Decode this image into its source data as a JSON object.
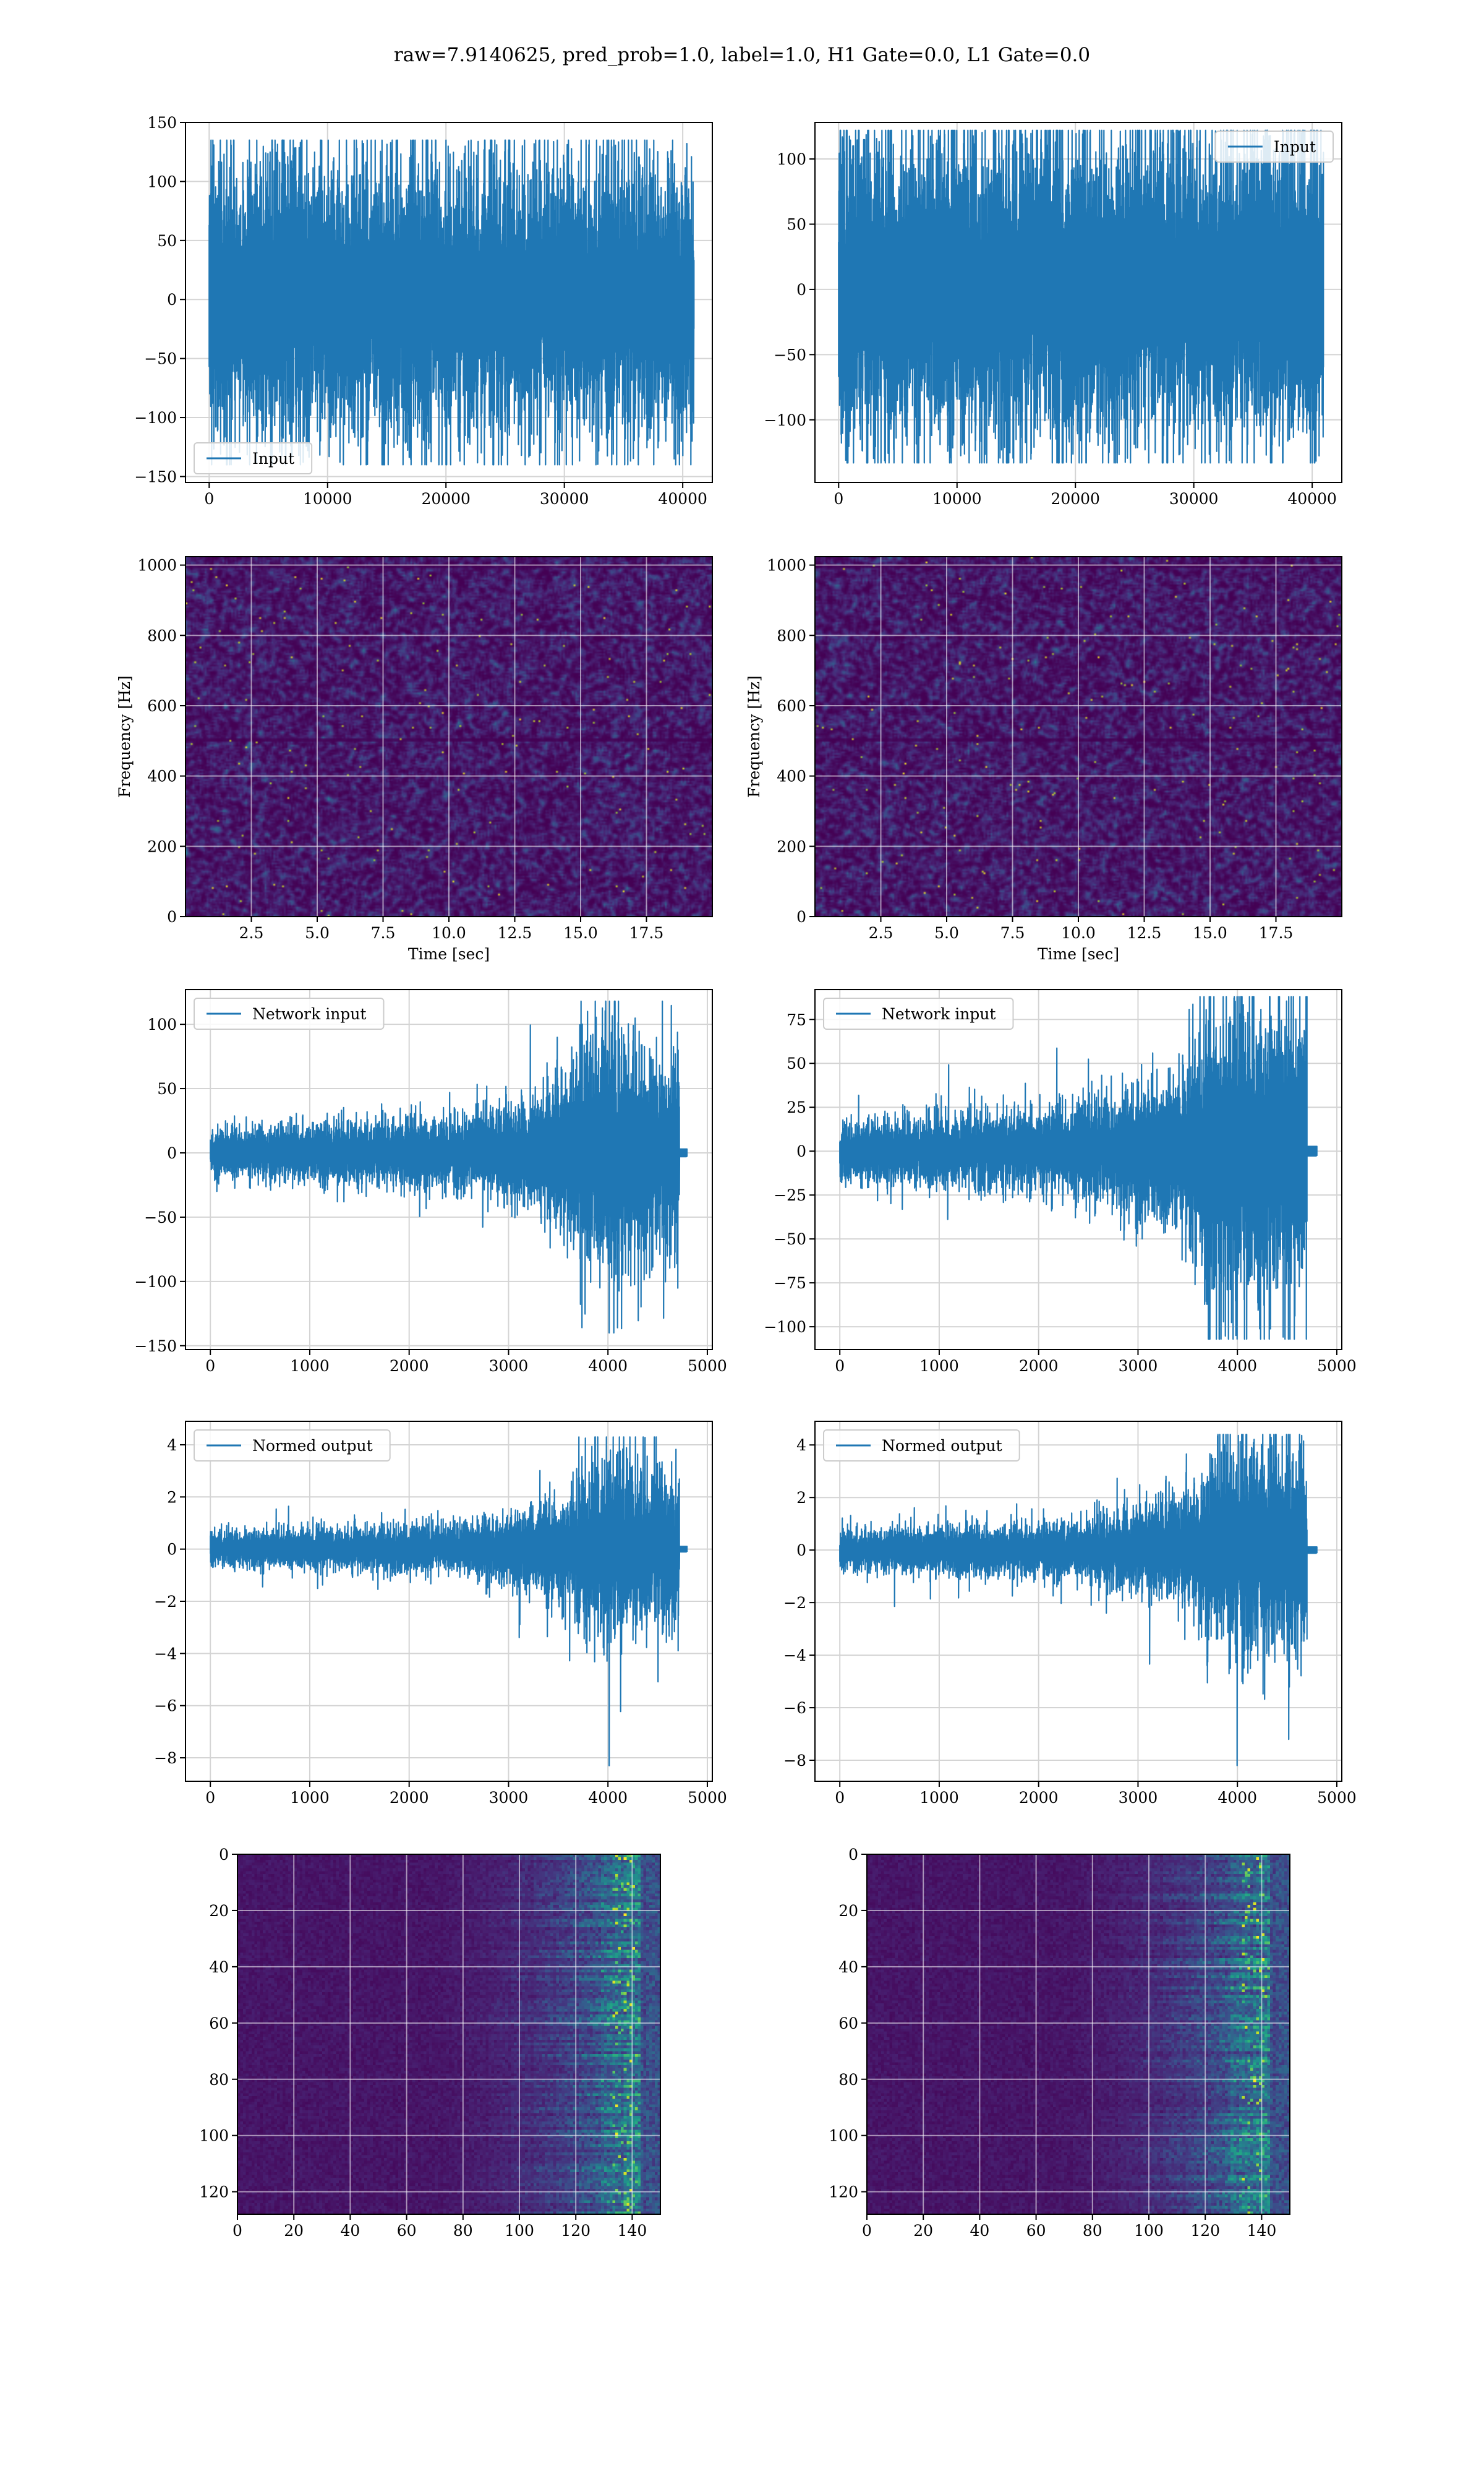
{
  "figure": {
    "suptitle": "raw=7.9140625, pred_prob=1.0, label=1.0, H1 Gate=0.0, L1 Gate=0.0"
  },
  "colors": {
    "line": "#1f77b4",
    "grid": "#d4d4d4",
    "viridis_low": "#440154",
    "viridis_mid": "#21918c",
    "viridis_high": "#fde725"
  },
  "chart_data": [
    {
      "id": "h1-input",
      "type": "line",
      "title": "",
      "xlabel": "",
      "ylabel": "",
      "xlim": [
        -2000,
        42500
      ],
      "ylim": [
        -155,
        150
      ],
      "xticks": [
        0,
        10000,
        20000,
        30000,
        40000
      ],
      "yticks": [
        -150,
        -100,
        -50,
        0,
        50,
        100,
        150
      ],
      "legend": {
        "entries": [
          "Input"
        ],
        "placement": "lower-left"
      },
      "grid": true,
      "series": [
        {
          "name": "Input",
          "x_range": [
            0,
            40959
          ],
          "noise": {
            "core": 62,
            "peak_max": 135,
            "peak_min": -140,
            "envelope": [
              [
                0,
                1
              ],
              [
                40959,
                1
              ]
            ]
          }
        }
      ]
    },
    {
      "id": "l1-input",
      "type": "line",
      "title": "",
      "xlabel": "",
      "ylabel": "",
      "xlim": [
        -2000,
        42500
      ],
      "ylim": [
        -148,
        128
      ],
      "xticks": [
        0,
        10000,
        20000,
        30000,
        40000
      ],
      "yticks": [
        -100,
        -50,
        0,
        50,
        100
      ],
      "legend": {
        "entries": [
          "Input"
        ],
        "placement": "upper-right"
      },
      "grid": true,
      "series": [
        {
          "name": "Input",
          "x_range": [
            0,
            40959
          ],
          "noise": {
            "core": 62,
            "peak_max": 122,
            "peak_min": -133,
            "envelope": [
              [
                0,
                1
              ],
              [
                40959,
                1
              ]
            ]
          }
        }
      ]
    },
    {
      "id": "h1-spectrogram",
      "type": "heatmap",
      "title": "",
      "xlabel": "Time [sec]",
      "ylabel": "Frequency [Hz]",
      "xlim": [
        0,
        20
      ],
      "ylim": [
        0,
        1024
      ],
      "xticks": [
        2.5,
        5.0,
        7.5,
        10.0,
        12.5,
        15.0,
        17.5
      ],
      "xtick_labels": [
        "2.5",
        "5.0",
        "7.5",
        "10.0",
        "12.5",
        "15.0",
        "17.5"
      ],
      "yticks": [
        0,
        200,
        400,
        600,
        800,
        1000
      ],
      "grid": true,
      "colormap": "viridis"
    },
    {
      "id": "l1-spectrogram",
      "type": "heatmap",
      "title": "",
      "xlabel": "Time [sec]",
      "ylabel": "Frequency [Hz]",
      "xlim": [
        0,
        20
      ],
      "ylim": [
        0,
        1024
      ],
      "xticks": [
        2.5,
        5.0,
        7.5,
        10.0,
        12.5,
        15.0,
        17.5
      ],
      "xtick_labels": [
        "2.5",
        "5.0",
        "7.5",
        "10.0",
        "12.5",
        "15.0",
        "17.5"
      ],
      "yticks": [
        0,
        200,
        400,
        600,
        800,
        1000
      ],
      "grid": true,
      "colormap": "viridis"
    },
    {
      "id": "h1-network-input",
      "type": "line",
      "title": "",
      "xlabel": "",
      "ylabel": "",
      "xlim": [
        -250,
        5050
      ],
      "ylim": [
        -153,
        127
      ],
      "xticks": [
        0,
        1000,
        2000,
        3000,
        4000,
        5000
      ],
      "yticks": [
        -150,
        -100,
        -50,
        0,
        50,
        100
      ],
      "legend": {
        "entries": [
          "Network input"
        ],
        "placement": "upper-left"
      },
      "grid": true,
      "series": [
        {
          "name": "Network input",
          "x_range": [
            0,
            4800
          ],
          "cutoff": 4720,
          "noise": {
            "core": 10,
            "peak_max": 118,
            "peak_min": -140,
            "envelope": [
              [
                0,
                1
              ],
              [
                2400,
                1.4
              ],
              [
                3200,
                2.2
              ],
              [
                3600,
                3.2
              ],
              [
                3700,
                4.6
              ],
              [
                4000,
                5.2
              ],
              [
                4500,
                4.6
              ],
              [
                4720,
                4.2
              ]
            ]
          }
        }
      ]
    },
    {
      "id": "l1-network-input",
      "type": "line",
      "title": "",
      "xlabel": "",
      "ylabel": "",
      "xlim": [
        -250,
        5050
      ],
      "ylim": [
        -113,
        92
      ],
      "xticks": [
        0,
        1000,
        2000,
        3000,
        4000,
        5000
      ],
      "yticks": [
        -100,
        -75,
        -50,
        -25,
        0,
        25,
        50,
        75
      ],
      "legend": {
        "entries": [
          "Network input"
        ],
        "placement": "upper-left"
      },
      "grid": true,
      "series": [
        {
          "name": "Network input",
          "x_range": [
            0,
            4800
          ],
          "cutoff": 4700,
          "noise": {
            "core": 9,
            "peak_max": 88,
            "peak_min": -107,
            "envelope": [
              [
                0,
                1
              ],
              [
                2400,
                1.4
              ],
              [
                3200,
                2.4
              ],
              [
                3600,
                3.2
              ],
              [
                3700,
                4.8
              ],
              [
                4000,
                5.4
              ],
              [
                4500,
                5.0
              ],
              [
                4700,
                4.6
              ]
            ]
          }
        }
      ]
    },
    {
      "id": "h1-normed-output",
      "type": "line",
      "title": "",
      "xlabel": "",
      "ylabel": "",
      "xlim": [
        -250,
        5050
      ],
      "ylim": [
        -8.9,
        4.9
      ],
      "xticks": [
        0,
        1000,
        2000,
        3000,
        4000,
        5000
      ],
      "yticks": [
        -8,
        -6,
        -4,
        -2,
        0,
        2,
        4
      ],
      "legend": {
        "entries": [
          "Normed output"
        ],
        "placement": "upper-left"
      },
      "grid": true,
      "series": [
        {
          "name": "Normed output",
          "x_range": [
            0,
            4800
          ],
          "cutoff": 4720,
          "noise": {
            "core": 0.35,
            "peak_max": 4.3,
            "peak_min": -8.3,
            "envelope": [
              [
                0,
                1
              ],
              [
                2400,
                1.4
              ],
              [
                3200,
                2.2
              ],
              [
                3600,
                3.2
              ],
              [
                3700,
                4.6
              ],
              [
                4000,
                5.2
              ],
              [
                4500,
                4.6
              ],
              [
                4720,
                4.2
              ]
            ]
          }
        }
      ]
    },
    {
      "id": "l1-normed-output",
      "type": "line",
      "title": "",
      "xlabel": "",
      "ylabel": "",
      "xlim": [
        -250,
        5050
      ],
      "ylim": [
        -8.8,
        4.9
      ],
      "xticks": [
        0,
        1000,
        2000,
        3000,
        4000,
        5000
      ],
      "yticks": [
        -8,
        -6,
        -4,
        -2,
        0,
        2,
        4
      ],
      "legend": {
        "entries": [
          "Normed output"
        ],
        "placement": "upper-left"
      },
      "grid": true,
      "series": [
        {
          "name": "Normed output",
          "x_range": [
            0,
            4800
          ],
          "cutoff": 4700,
          "noise": {
            "core": 0.4,
            "peak_max": 4.4,
            "peak_min": -8.2,
            "envelope": [
              [
                0,
                1
              ],
              [
                2400,
                1.4
              ],
              [
                3200,
                2.4
              ],
              [
                3600,
                3.2
              ],
              [
                3700,
                4.8
              ],
              [
                4000,
                5.4
              ],
              [
                4500,
                5.0
              ],
              [
                4700,
                4.6
              ]
            ]
          }
        }
      ]
    },
    {
      "id": "h1-feature-map",
      "type": "heatmap",
      "title": "",
      "xlabel": "",
      "ylabel": "",
      "xlim": [
        0,
        150
      ],
      "ylim": [
        128,
        0
      ],
      "xticks": [
        0,
        20,
        40,
        60,
        80,
        100,
        120,
        140
      ],
      "yticks": [
        0,
        20,
        40,
        60,
        80,
        100,
        120
      ],
      "grid": true,
      "colormap": "viridis"
    },
    {
      "id": "l1-feature-map",
      "type": "heatmap",
      "title": "",
      "xlabel": "",
      "ylabel": "",
      "xlim": [
        0,
        150
      ],
      "ylim": [
        128,
        0
      ],
      "xticks": [
        0,
        20,
        40,
        60,
        80,
        100,
        120,
        140
      ],
      "yticks": [
        0,
        20,
        40,
        60,
        80,
        100,
        120
      ],
      "grid": true,
      "colormap": "viridis"
    }
  ]
}
